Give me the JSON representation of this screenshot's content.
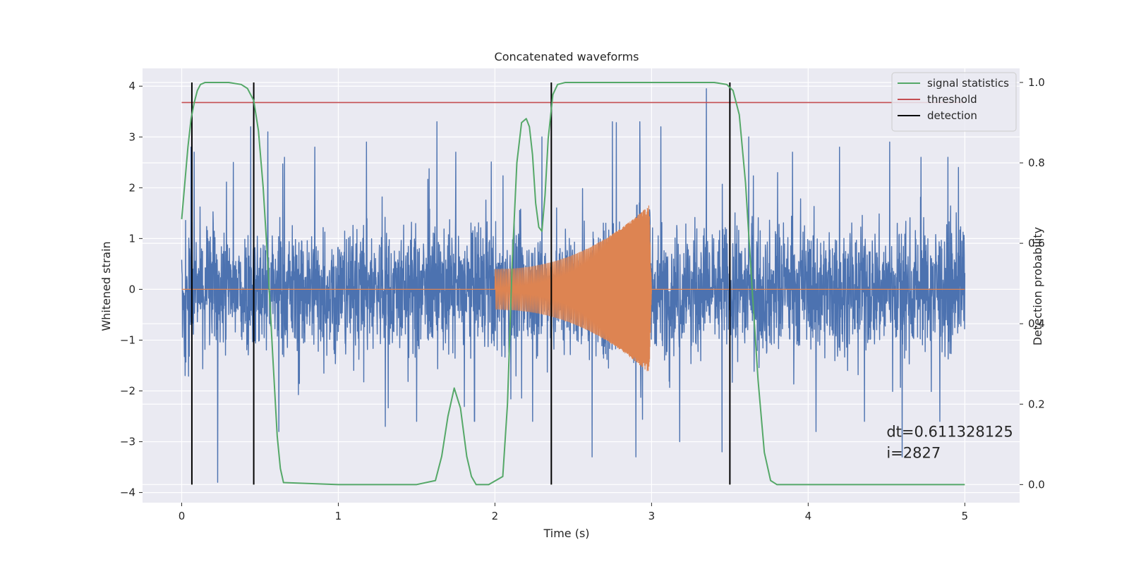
{
  "chart_data": {
    "type": "line",
    "title": "Concatenated waveforms",
    "xlabel": "Time (s)",
    "ylabel": "Whitened strain",
    "ylabel_right": "Detection probability",
    "xlim": [
      -0.25,
      5.35
    ],
    "ylim": [
      -4.2,
      4.35
    ],
    "ylim_right": [
      -0.045,
      1.035
    ],
    "x_ticks": [
      0,
      1,
      2,
      3,
      4,
      5
    ],
    "x_tick_labels": [
      "0",
      "1",
      "2",
      "3",
      "4",
      "5"
    ],
    "y_ticks": [
      -4,
      -3,
      -2,
      -1,
      0,
      1,
      2,
      3,
      4
    ],
    "y_tick_labels": [
      "−4",
      "−3",
      "−2",
      "−1",
      "0",
      "1",
      "2",
      "3",
      "4"
    ],
    "y_right_ticks": [
      0.0,
      0.2,
      0.4,
      0.6,
      0.8,
      1.0
    ],
    "y_right_tick_labels": [
      "0.0",
      "0.2",
      "0.4",
      "0.6",
      "0.8",
      "1.0"
    ],
    "grid": true,
    "legend_position": "top-right",
    "colors": {
      "strain": "#4c72b0",
      "template": "#dd8452",
      "signal_statistics": "#55a868",
      "threshold": "#c44e52",
      "detection": "#000000",
      "plot_bg": "#eaeaf2",
      "grid": "#ffffff"
    },
    "series": [
      {
        "name": "signal statistics",
        "axis": "right",
        "x": [
          0.0,
          0.02,
          0.04,
          0.06,
          0.08,
          0.1,
          0.12,
          0.15,
          0.2,
          0.3,
          0.38,
          0.42,
          0.46,
          0.49,
          0.52,
          0.55,
          0.58,
          0.61,
          0.63,
          0.65,
          1.0,
          1.5,
          1.62,
          1.66,
          1.7,
          1.74,
          1.78,
          1.82,
          1.85,
          1.88,
          1.92,
          1.96,
          2.05,
          2.08,
          2.11,
          2.14,
          2.17,
          2.2,
          2.22,
          2.24,
          2.26,
          2.28,
          2.3,
          2.32,
          2.34,
          2.37,
          2.4,
          2.45,
          2.5,
          3.0,
          3.4,
          3.48,
          3.52,
          3.56,
          3.6,
          3.64,
          3.68,
          3.72,
          3.76,
          3.8,
          4.2,
          5.0
        ],
        "y": [
          0.66,
          0.75,
          0.84,
          0.91,
          0.95,
          0.98,
          0.995,
          1.0,
          1.0,
          1.0,
          0.995,
          0.985,
          0.955,
          0.88,
          0.74,
          0.55,
          0.33,
          0.12,
          0.04,
          0.005,
          0.0,
          0.0,
          0.01,
          0.07,
          0.17,
          0.24,
          0.19,
          0.07,
          0.02,
          0.0,
          0.0,
          0.0,
          0.02,
          0.2,
          0.55,
          0.8,
          0.9,
          0.91,
          0.89,
          0.82,
          0.7,
          0.64,
          0.63,
          0.72,
          0.86,
          0.97,
          0.995,
          1.0,
          1.0,
          1.0,
          1.0,
          0.995,
          0.98,
          0.92,
          0.75,
          0.5,
          0.26,
          0.08,
          0.01,
          0.0,
          0.0,
          0.0
        ]
      },
      {
        "name": "threshold",
        "axis": "right",
        "x": [
          0.0,
          5.0
        ],
        "y": [
          0.95,
          0.95
        ]
      },
      {
        "name": "detection",
        "axis": "right",
        "x_positions": [
          0.065,
          0.46,
          2.36,
          3.5
        ],
        "y_range": [
          0.0,
          1.0
        ]
      },
      {
        "axis": "left",
        "role": "strain",
        "x_range": [
          0.0,
          5.0
        ],
        "envelope": 1.1,
        "spikes": [
          {
            "x": 0.06,
            "y": 2.8
          },
          {
            "x": 0.08,
            "y": 2.7
          },
          {
            "x": 0.23,
            "y": -3.8
          },
          {
            "x": 0.33,
            "y": 2.5
          },
          {
            "x": 0.44,
            "y": 3.2
          },
          {
            "x": 0.55,
            "y": 3.1
          },
          {
            "x": 0.62,
            "y": -2.8
          },
          {
            "x": 0.85,
            "y": 2.8
          },
          {
            "x": 1.18,
            "y": 2.9
          },
          {
            "x": 1.3,
            "y": -2.7
          },
          {
            "x": 1.5,
            "y": -2.6
          },
          {
            "x": 1.63,
            "y": 3.3
          },
          {
            "x": 1.75,
            "y": 2.7
          },
          {
            "x": 1.87,
            "y": -2.6
          },
          {
            "x": 2.3,
            "y": 3.0
          },
          {
            "x": 2.36,
            "y": -3.4
          },
          {
            "x": 2.62,
            "y": -3.8
          },
          {
            "x": 2.75,
            "y": 3.3
          },
          {
            "x": 2.9,
            "y": -3.0
          },
          {
            "x": 3.06,
            "y": 3.2
          },
          {
            "x": 3.18,
            "y": -3.0
          },
          {
            "x": 3.35,
            "y": 3.95
          },
          {
            "x": 3.45,
            "y": -3.2
          },
          {
            "x": 3.62,
            "y": 3.0
          },
          {
            "x": 3.9,
            "y": 2.7
          },
          {
            "x": 4.05,
            "y": -2.8
          },
          {
            "x": 4.2,
            "y": 2.8
          },
          {
            "x": 4.36,
            "y": -2.6
          },
          {
            "x": 4.52,
            "y": 2.9
          },
          {
            "x": 4.6,
            "y": -3.3
          },
          {
            "x": 4.72,
            "y": 2.6
          },
          {
            "x": 4.84,
            "y": -2.6
          },
          {
            "x": 4.96,
            "y": 2.4
          }
        ]
      },
      {
        "axis": "left",
        "role": "template",
        "x_start": 2.0,
        "x_end": 3.0,
        "amplitude_start": 0.4,
        "amplitude_end": 1.7,
        "zero_line_x": [
          0.0,
          5.0
        ]
      }
    ],
    "annotation": {
      "lines": [
        "dt=0.611328125",
        " i=2827"
      ],
      "x": 4.5,
      "y": -2.9
    }
  }
}
